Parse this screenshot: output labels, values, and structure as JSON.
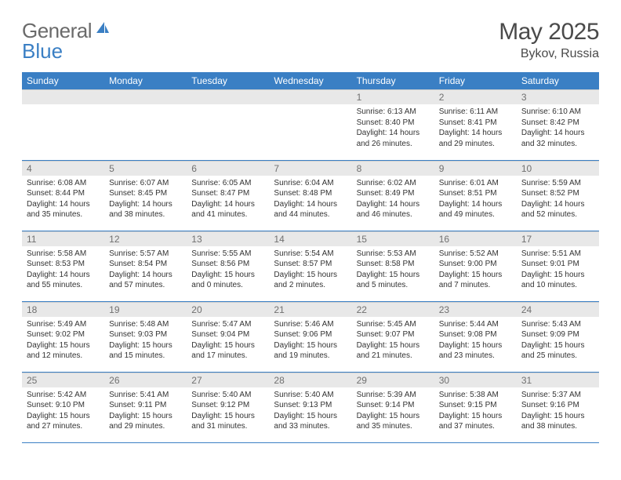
{
  "brand": {
    "part1": "General",
    "part2": "Blue"
  },
  "title": "May 2025",
  "location": "Bykov, Russia",
  "colors": {
    "header_bg": "#3a7fc4",
    "header_text": "#ffffff",
    "daynum_bg": "#e8e8e8",
    "daynum_text": "#707070",
    "rule": "#3a7fc4",
    "body_text": "#333333",
    "page_bg": "#ffffff"
  },
  "dow": [
    "Sunday",
    "Monday",
    "Tuesday",
    "Wednesday",
    "Thursday",
    "Friday",
    "Saturday"
  ],
  "weeks": [
    [
      {
        "n": "",
        "sr": "",
        "ss": "",
        "dl": ""
      },
      {
        "n": "",
        "sr": "",
        "ss": "",
        "dl": ""
      },
      {
        "n": "",
        "sr": "",
        "ss": "",
        "dl": ""
      },
      {
        "n": "",
        "sr": "",
        "ss": "",
        "dl": ""
      },
      {
        "n": "1",
        "sr": "Sunrise: 6:13 AM",
        "ss": "Sunset: 8:40 PM",
        "dl": "Daylight: 14 hours and 26 minutes."
      },
      {
        "n": "2",
        "sr": "Sunrise: 6:11 AM",
        "ss": "Sunset: 8:41 PM",
        "dl": "Daylight: 14 hours and 29 minutes."
      },
      {
        "n": "3",
        "sr": "Sunrise: 6:10 AM",
        "ss": "Sunset: 8:42 PM",
        "dl": "Daylight: 14 hours and 32 minutes."
      }
    ],
    [
      {
        "n": "4",
        "sr": "Sunrise: 6:08 AM",
        "ss": "Sunset: 8:44 PM",
        "dl": "Daylight: 14 hours and 35 minutes."
      },
      {
        "n": "5",
        "sr": "Sunrise: 6:07 AM",
        "ss": "Sunset: 8:45 PM",
        "dl": "Daylight: 14 hours and 38 minutes."
      },
      {
        "n": "6",
        "sr": "Sunrise: 6:05 AM",
        "ss": "Sunset: 8:47 PM",
        "dl": "Daylight: 14 hours and 41 minutes."
      },
      {
        "n": "7",
        "sr": "Sunrise: 6:04 AM",
        "ss": "Sunset: 8:48 PM",
        "dl": "Daylight: 14 hours and 44 minutes."
      },
      {
        "n": "8",
        "sr": "Sunrise: 6:02 AM",
        "ss": "Sunset: 8:49 PM",
        "dl": "Daylight: 14 hours and 46 minutes."
      },
      {
        "n": "9",
        "sr": "Sunrise: 6:01 AM",
        "ss": "Sunset: 8:51 PM",
        "dl": "Daylight: 14 hours and 49 minutes."
      },
      {
        "n": "10",
        "sr": "Sunrise: 5:59 AM",
        "ss": "Sunset: 8:52 PM",
        "dl": "Daylight: 14 hours and 52 minutes."
      }
    ],
    [
      {
        "n": "11",
        "sr": "Sunrise: 5:58 AM",
        "ss": "Sunset: 8:53 PM",
        "dl": "Daylight: 14 hours and 55 minutes."
      },
      {
        "n": "12",
        "sr": "Sunrise: 5:57 AM",
        "ss": "Sunset: 8:54 PM",
        "dl": "Daylight: 14 hours and 57 minutes."
      },
      {
        "n": "13",
        "sr": "Sunrise: 5:55 AM",
        "ss": "Sunset: 8:56 PM",
        "dl": "Daylight: 15 hours and 0 minutes."
      },
      {
        "n": "14",
        "sr": "Sunrise: 5:54 AM",
        "ss": "Sunset: 8:57 PM",
        "dl": "Daylight: 15 hours and 2 minutes."
      },
      {
        "n": "15",
        "sr": "Sunrise: 5:53 AM",
        "ss": "Sunset: 8:58 PM",
        "dl": "Daylight: 15 hours and 5 minutes."
      },
      {
        "n": "16",
        "sr": "Sunrise: 5:52 AM",
        "ss": "Sunset: 9:00 PM",
        "dl": "Daylight: 15 hours and 7 minutes."
      },
      {
        "n": "17",
        "sr": "Sunrise: 5:51 AM",
        "ss": "Sunset: 9:01 PM",
        "dl": "Daylight: 15 hours and 10 minutes."
      }
    ],
    [
      {
        "n": "18",
        "sr": "Sunrise: 5:49 AM",
        "ss": "Sunset: 9:02 PM",
        "dl": "Daylight: 15 hours and 12 minutes."
      },
      {
        "n": "19",
        "sr": "Sunrise: 5:48 AM",
        "ss": "Sunset: 9:03 PM",
        "dl": "Daylight: 15 hours and 15 minutes."
      },
      {
        "n": "20",
        "sr": "Sunrise: 5:47 AM",
        "ss": "Sunset: 9:04 PM",
        "dl": "Daylight: 15 hours and 17 minutes."
      },
      {
        "n": "21",
        "sr": "Sunrise: 5:46 AM",
        "ss": "Sunset: 9:06 PM",
        "dl": "Daylight: 15 hours and 19 minutes."
      },
      {
        "n": "22",
        "sr": "Sunrise: 5:45 AM",
        "ss": "Sunset: 9:07 PM",
        "dl": "Daylight: 15 hours and 21 minutes."
      },
      {
        "n": "23",
        "sr": "Sunrise: 5:44 AM",
        "ss": "Sunset: 9:08 PM",
        "dl": "Daylight: 15 hours and 23 minutes."
      },
      {
        "n": "24",
        "sr": "Sunrise: 5:43 AM",
        "ss": "Sunset: 9:09 PM",
        "dl": "Daylight: 15 hours and 25 minutes."
      }
    ],
    [
      {
        "n": "25",
        "sr": "Sunrise: 5:42 AM",
        "ss": "Sunset: 9:10 PM",
        "dl": "Daylight: 15 hours and 27 minutes."
      },
      {
        "n": "26",
        "sr": "Sunrise: 5:41 AM",
        "ss": "Sunset: 9:11 PM",
        "dl": "Daylight: 15 hours and 29 minutes."
      },
      {
        "n": "27",
        "sr": "Sunrise: 5:40 AM",
        "ss": "Sunset: 9:12 PM",
        "dl": "Daylight: 15 hours and 31 minutes."
      },
      {
        "n": "28",
        "sr": "Sunrise: 5:40 AM",
        "ss": "Sunset: 9:13 PM",
        "dl": "Daylight: 15 hours and 33 minutes."
      },
      {
        "n": "29",
        "sr": "Sunrise: 5:39 AM",
        "ss": "Sunset: 9:14 PM",
        "dl": "Daylight: 15 hours and 35 minutes."
      },
      {
        "n": "30",
        "sr": "Sunrise: 5:38 AM",
        "ss": "Sunset: 9:15 PM",
        "dl": "Daylight: 15 hours and 37 minutes."
      },
      {
        "n": "31",
        "sr": "Sunrise: 5:37 AM",
        "ss": "Sunset: 9:16 PM",
        "dl": "Daylight: 15 hours and 38 minutes."
      }
    ]
  ]
}
